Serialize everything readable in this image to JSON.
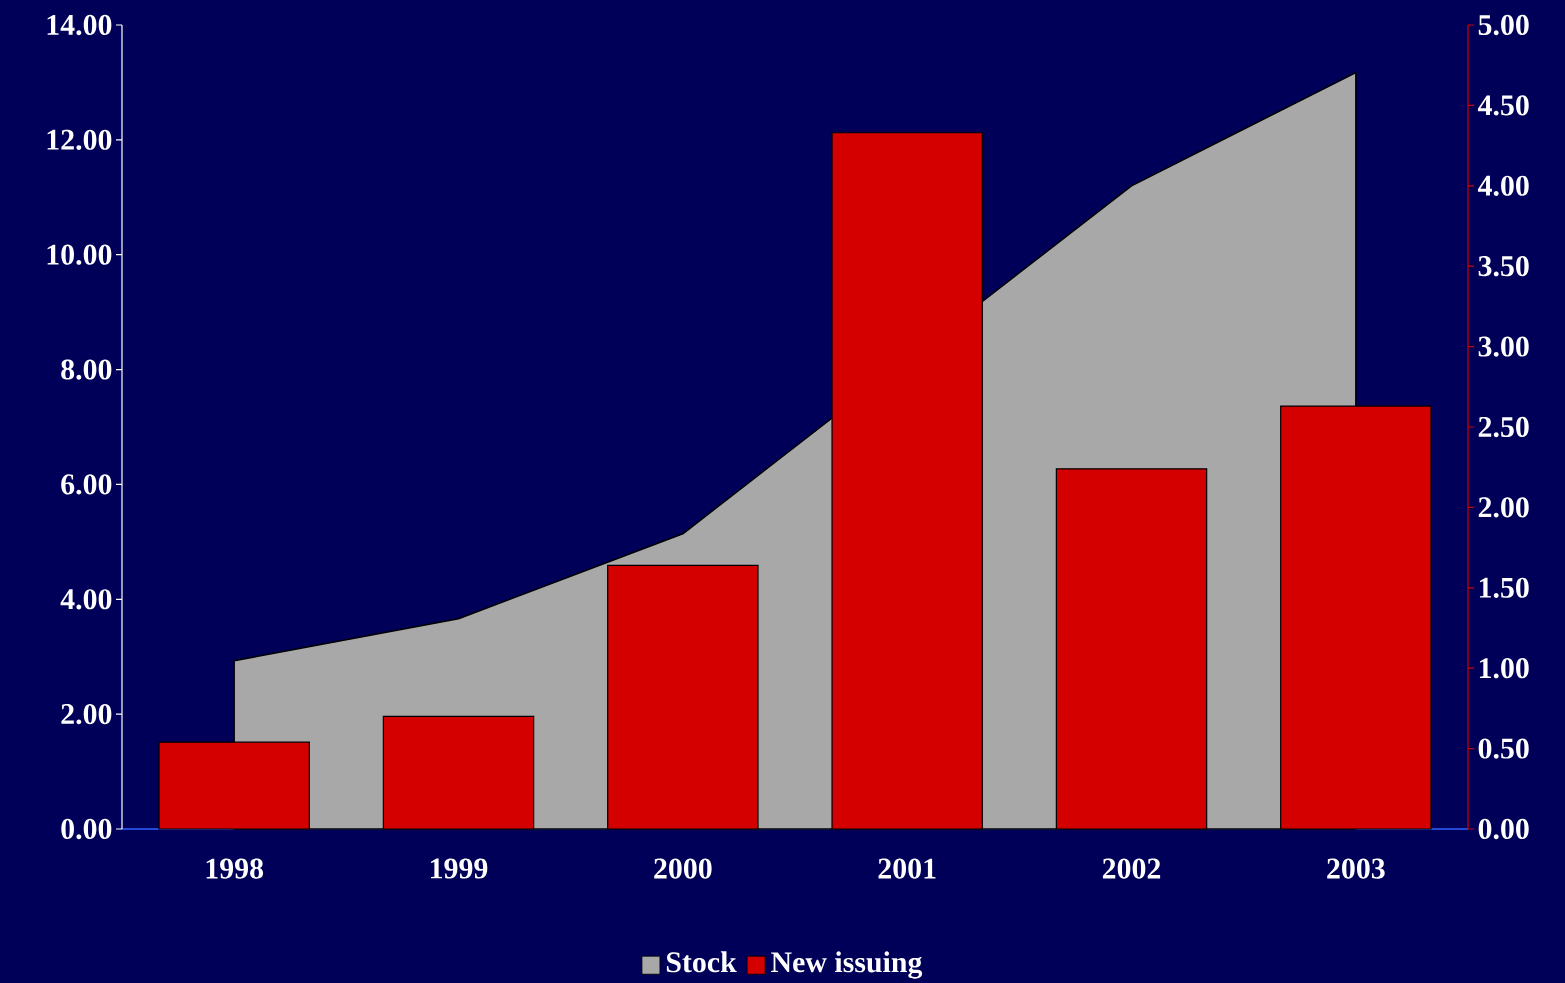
{
  "chart_data": {
    "type": "bar",
    "categories": [
      "1998",
      "1999",
      "2000",
      "2001",
      "2002",
      "2003"
    ],
    "series": [
      {
        "name": "Stock",
        "type": "area",
        "color": "#a8a8a8",
        "values": [
          2.93,
          3.66,
          5.14,
          null,
          11.2,
          13.17
        ]
      },
      {
        "name": "New issuing",
        "axis": "y2",
        "color": "#d40000",
        "values": [
          0.54,
          0.7,
          1.64,
          4.33,
          2.24,
          2.63
        ]
      }
    ],
    "ylim": [
      0,
      14
    ],
    "yticks": [
      {
        "value": 0,
        "label": "0.00"
      },
      {
        "value": 2,
        "label": "2.00"
      },
      {
        "value": 4,
        "label": "4.00"
      },
      {
        "value": 6,
        "label": "6.00"
      },
      {
        "value": 8,
        "label": "8.00"
      },
      {
        "value": 10,
        "label": "10.00"
      },
      {
        "value": 12,
        "label": "12.00"
      },
      {
        "value": 14,
        "label": "14.00"
      }
    ],
    "y2lim": [
      0,
      5
    ],
    "y2ticks": [
      {
        "value": 0,
        "label": "0.00"
      },
      {
        "value": 0.5,
        "label": "0.50"
      },
      {
        "value": 1,
        "label": "1.00"
      },
      {
        "value": 1.5,
        "label": "1.50"
      },
      {
        "value": 2,
        "label": "2.00"
      },
      {
        "value": 2.5,
        "label": "2.50"
      },
      {
        "value": 3,
        "label": "3.00"
      },
      {
        "value": 3.5,
        "label": "3.50"
      },
      {
        "value": 4,
        "label": "4.00"
      },
      {
        "value": 4.5,
        "label": "4.50"
      },
      {
        "value": 5,
        "label": "5.00"
      }
    ],
    "legend": "bottom",
    "grid": false
  }
}
